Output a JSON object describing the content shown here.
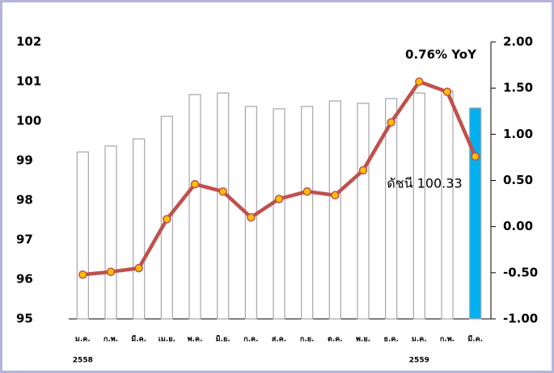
{
  "chart_data": {
    "type": "bar-line",
    "categories": [
      "ม.ค.",
      "ก.พ.",
      "มี.ค.",
      "เม.ย.",
      "พ.ค.",
      "มิ.ย.",
      "ก.ค.",
      "ส.ค.",
      "ก.ย.",
      "ต.ค.",
      "พ.ย.",
      "ธ.ค.",
      "ม.ค.",
      "ก.พ.",
      "มี.ค."
    ],
    "years": [
      "2558",
      null,
      null,
      null,
      null,
      null,
      null,
      null,
      null,
      null,
      null,
      null,
      "2559",
      null,
      null
    ],
    "series": [
      {
        "type": "bar",
        "colors": [
          "#ffffff",
          "#ffffff",
          "#ffffff",
          "#ffffff",
          "#ffffff",
          "#ffffff",
          "#ffffff",
          "#ffffff",
          "#ffffff",
          "#ffffff",
          "#ffffff",
          "#ffffff",
          "#ffffff",
          "#ffffff",
          "#00b0f0"
        ],
        "values": [
          99.22,
          99.37,
          99.55,
          100.12,
          100.67,
          100.71,
          100.37,
          100.31,
          100.37,
          100.51,
          100.45,
          100.57,
          100.71,
          100.76,
          100.33
        ]
      },
      {
        "type": "line",
        "axis": "y2",
        "color": "#c0504d",
        "marker_color": "#ffc000",
        "values": [
          -0.52,
          -0.49,
          -0.45,
          0.08,
          0.46,
          0.38,
          0.1,
          0.3,
          0.38,
          0.34,
          0.61,
          1.13,
          1.57,
          1.46,
          0.76
        ]
      }
    ],
    "annotations": [
      "0.76% YoY",
      "ดัชนี 100.33"
    ],
    "ylim": [
      95,
      102
    ],
    "yticks": [
      95,
      96,
      97,
      98,
      99,
      100,
      101,
      102
    ],
    "y2lim": [
      -1,
      2
    ],
    "y2ticks": [
      {
        "value": -1,
        "label": "-1.00"
      },
      {
        "value": -0.5,
        "label": "-0.50"
      },
      {
        "value": 0,
        "label": "0.00"
      },
      {
        "value": 0.5,
        "label": "0.50"
      },
      {
        "value": 1,
        "label": "1.00"
      },
      {
        "value": 1.5,
        "label": "1.50"
      },
      {
        "value": 2,
        "label": "2.00"
      }
    ]
  }
}
